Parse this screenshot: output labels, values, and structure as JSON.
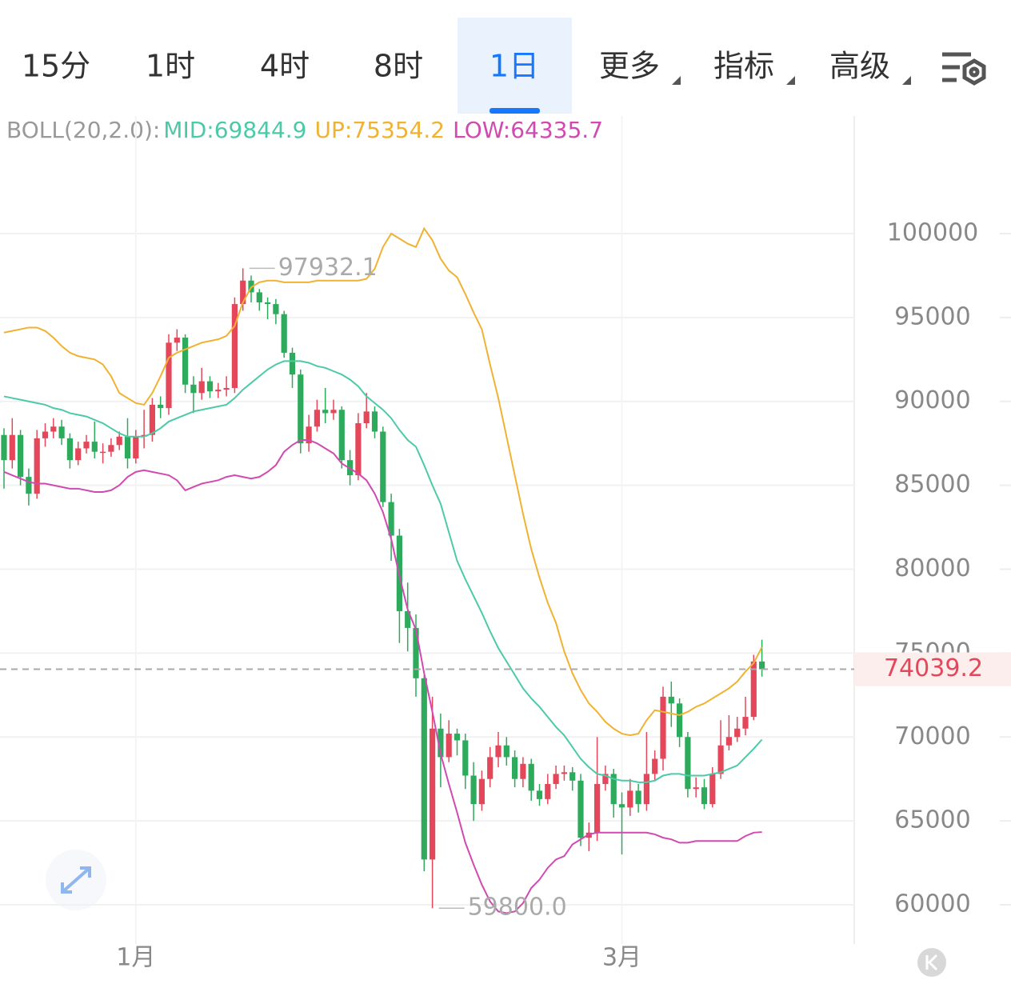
{
  "tabs": [
    "15分",
    "1时",
    "4时",
    "8时",
    "1日",
    "更多",
    "指标",
    "高级"
  ],
  "selected_tab": 4,
  "chart_data": {
    "type": "candlestick",
    "indicator": {
      "name": "BOLL(20,2.0):",
      "items": [
        "MID:69844.9",
        "UP:75354.2",
        "LOW:64335.7"
      ]
    },
    "categories": [
      null,
      null,
      null,
      null,
      null,
      null,
      null,
      null,
      null,
      null,
      null,
      null,
      null,
      null,
      null,
      null,
      "1月",
      null,
      null,
      null,
      null,
      null,
      null,
      null,
      null,
      null,
      null,
      null,
      null,
      null,
      null,
      null,
      null,
      null,
      null,
      null,
      null,
      null,
      null,
      null,
      null,
      null,
      null,
      null,
      null,
      null,
      null,
      null,
      null,
      null,
      null,
      null,
      null,
      null,
      null,
      null,
      null,
      null,
      null,
      null,
      null,
      null,
      null,
      null,
      null,
      null,
      null,
      null,
      null,
      null,
      null,
      null,
      null,
      null,
      null,
      "3月",
      null,
      null,
      null,
      null,
      null,
      null,
      null,
      null,
      null,
      null,
      null,
      null,
      null,
      null,
      null,
      null,
      null
    ],
    "open": [
      88000,
      86500,
      88000,
      85500,
      84500,
      87800,
      88200,
      88500,
      87800,
      86500,
      87200,
      87600,
      87000,
      87000,
      87400,
      87900,
      86600,
      87900,
      88000,
      89800,
      89600,
      93500,
      93800,
      91000,
      90500,
      91200,
      90600,
      90700,
      90800,
      95800,
      97200,
      96500,
      95900,
      95800,
      95200,
      92900,
      91600,
      87500,
      88500,
      89500,
      89300,
      89500,
      86500,
      85600,
      88700,
      89400,
      88200,
      84000,
      82000,
      77500,
      76500,
      73500,
      62700,
      70500,
      68800,
      70200,
      69800,
      67700,
      66000,
      67500,
      68800,
      69500,
      68800,
      67500,
      68400,
      66800,
      66300,
      67200,
      67800,
      67900,
      67400,
      64000,
      64300,
      67200,
      67800,
      66000,
      65800,
      66800,
      66000,
      67800,
      68700,
      72400,
      72000,
      70000,
      66900,
      67000,
      66000,
      67800,
      69500,
      70000,
      70500,
      71200,
      74500
    ],
    "high": [
      88400,
      89000,
      88300,
      86000,
      88300,
      88700,
      89000,
      88900,
      88100,
      87600,
      88000,
      88800,
      87500,
      87800,
      88200,
      89000,
      88300,
      89500,
      90200,
      90300,
      94000,
      94300,
      94000,
      91500,
      92000,
      91500,
      91100,
      91500,
      96200,
      97932.1,
      97500,
      96700,
      96200,
      96100,
      95400,
      93200,
      91900,
      89200,
      90100,
      90800,
      90100,
      89700,
      87100,
      89300,
      90500,
      89700,
      88500,
      84500,
      82400,
      79200,
      77300,
      73700,
      72400,
      71400,
      71000,
      70500,
      70200,
      68500,
      68000,
      69400,
      70300,
      70000,
      69200,
      68800,
      68700,
      67200,
      67800,
      68300,
      68300,
      68200,
      67800,
      64900,
      70000,
      68300,
      68100,
      66700,
      67500,
      67200,
      70300,
      69200,
      73000,
      73300,
      72300,
      70300,
      67600,
      67500,
      68200,
      71000,
      71300,
      71200,
      72400,
      74900,
      75800
    ],
    "low": [
      84800,
      86000,
      85000,
      83800,
      84200,
      87300,
      87800,
      87400,
      86000,
      86200,
      86900,
      86600,
      86300,
      86700,
      87100,
      86000,
      86300,
      87200,
      87600,
      89000,
      89200,
      93000,
      90500,
      89300,
      90100,
      90200,
      90200,
      90300,
      90500,
      95400,
      95900,
      95400,
      94900,
      94600,
      92600,
      90800,
      86900,
      87000,
      88200,
      88700,
      88900,
      86000,
      85000,
      85300,
      88400,
      87800,
      83700,
      80500,
      75600,
      75100,
      72400,
      62000,
      59800,
      67000,
      68500,
      68900,
      66900,
      65000,
      65600,
      67000,
      68200,
      68300,
      67000,
      67000,
      66200,
      65900,
      66000,
      66900,
      67400,
      66800,
      63500,
      63200,
      63800,
      66800,
      65200,
      63000,
      65300,
      65500,
      65600,
      67400,
      68000,
      70600,
      69400,
      66400,
      66400,
      65700,
      65800,
      67500,
      69200,
      69700,
      70100,
      71000,
      73600
    ],
    "close": [
      86500,
      88000,
      85500,
      84500,
      87800,
      88200,
      88500,
      87800,
      86500,
      87200,
      87600,
      87000,
      87000,
      87400,
      87900,
      86600,
      87900,
      88000,
      89800,
      89600,
      93500,
      93800,
      91000,
      90500,
      91200,
      90600,
      90700,
      90800,
      95800,
      97200,
      96500,
      95900,
      95800,
      95200,
      92900,
      91600,
      87500,
      88500,
      89500,
      89300,
      89500,
      86500,
      85600,
      88700,
      89400,
      88200,
      84000,
      82000,
      77500,
      76500,
      73500,
      62700,
      70500,
      68800,
      70200,
      69800,
      67700,
      66000,
      67500,
      68800,
      69500,
      68800,
      67500,
      68400,
      66800,
      66300,
      67200,
      67800,
      67900,
      67400,
      64000,
      64300,
      67200,
      67800,
      66000,
      65800,
      66800,
      66000,
      67800,
      68700,
      72400,
      72000,
      70000,
      66900,
      67000,
      66000,
      67800,
      69500,
      70000,
      70500,
      71200,
      74500,
      74039.2
    ],
    "up_color": "#e5475a",
    "down_color": "#2eaa5c",
    "bands": [
      {
        "color": "#4ccaa8",
        "values": [
          90300,
          90200,
          90100,
          90000,
          89900,
          89800,
          89600,
          89500,
          89300,
          89200,
          89100,
          88900,
          88700,
          88400,
          88100,
          87900,
          87900,
          87900,
          88100,
          88400,
          88800,
          89000,
          89200,
          89400,
          89500,
          89600,
          89700,
          89800,
          90200,
          90700,
          91100,
          91500,
          91900,
          92200,
          92400,
          92400,
          92400,
          92300,
          92100,
          92000,
          91800,
          91600,
          91300,
          90900,
          90300,
          89900,
          89500,
          89000,
          88300,
          87700,
          87300,
          86200,
          85000,
          83900,
          82200,
          80500,
          79400,
          78400,
          77400,
          76300,
          75300,
          74500,
          73700,
          72900,
          72300,
          71800,
          71200,
          70600,
          70100,
          69400,
          68700,
          68200,
          67800,
          67700,
          67500,
          67400,
          67400,
          67300,
          67300,
          67400,
          67700,
          67800,
          67800,
          67700,
          67700,
          67700,
          67800,
          67900,
          68100,
          68300,
          68800,
          69300,
          69844.9
        ]
      },
      {
        "color": "#f0b232",
        "values": [
          94100,
          94200,
          94300,
          94400,
          94400,
          94200,
          93800,
          93300,
          92900,
          92700,
          92600,
          92500,
          92200,
          91500,
          90500,
          90200,
          89900,
          89800,
          90500,
          91500,
          92600,
          92900,
          93100,
          93300,
          93500,
          93600,
          93700,
          93900,
          94500,
          95900,
          96800,
          97100,
          97200,
          97200,
          97100,
          97100,
          97100,
          97100,
          97200,
          97200,
          97200,
          97200,
          97200,
          97200,
          97300,
          97900,
          99200,
          100000,
          99700,
          99400,
          99200,
          100300,
          99600,
          98500,
          97800,
          97400,
          96400,
          95300,
          94300,
          92200,
          90200,
          87900,
          85600,
          83300,
          81200,
          79500,
          78000,
          76800,
          75100,
          73800,
          72800,
          72000,
          71500,
          70900,
          70500,
          70200,
          70100,
          70200,
          71000,
          71600,
          71500,
          71400,
          71300,
          71500,
          71800,
          72000,
          72300,
          72600,
          72900,
          73300,
          73900,
          74400,
          75354.2
        ]
      },
      {
        "color": "#d04ab0",
        "values": [
          85800,
          85600,
          85400,
          85200,
          85100,
          85100,
          85000,
          84900,
          84800,
          84800,
          84700,
          84600,
          84600,
          84700,
          85000,
          85500,
          85800,
          85900,
          85800,
          85700,
          85600,
          85300,
          84700,
          84900,
          85100,
          85200,
          85300,
          85500,
          85600,
          85500,
          85400,
          85500,
          85800,
          86200,
          87000,
          87400,
          87700,
          87700,
          87500,
          87200,
          86900,
          86300,
          86000,
          85700,
          85300,
          84500,
          83400,
          81800,
          79600,
          77600,
          76400,
          73800,
          71500,
          69000,
          67200,
          65500,
          63700,
          62400,
          61200,
          60200,
          59600,
          59500,
          59600,
          60100,
          61000,
          61500,
          62200,
          62700,
          62900,
          63600,
          63900,
          64200,
          64300,
          64300,
          64300,
          64300,
          64300,
          64300,
          64300,
          64200,
          64000,
          63900,
          63700,
          63700,
          63800,
          63800,
          63800,
          63800,
          63800,
          63800,
          64100,
          64300,
          64335.7
        ]
      }
    ],
    "annotations": [
      "97932.1",
      "59800.0"
    ],
    "last_price": 74039.2,
    "ylim": [
      57664,
      107008
    ],
    "yticks": [
      60000,
      65000,
      70000,
      75000,
      80000,
      85000,
      90000,
      95000,
      100000
    ],
    "grid": true
  }
}
